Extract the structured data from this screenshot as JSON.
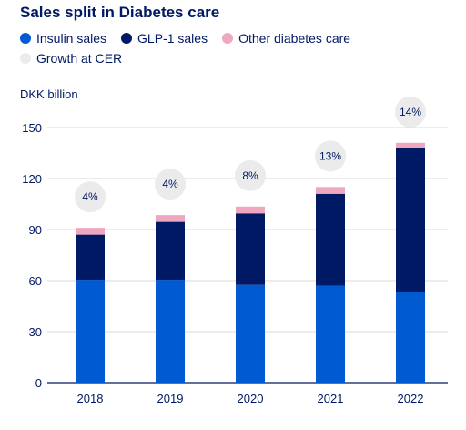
{
  "chart_data": {
    "type": "bar",
    "stacked": true,
    "title": "Sales split in Diabetes care",
    "ylabel": "DKK billion",
    "xlabel": "",
    "categories": [
      "2018",
      "2019",
      "2020",
      "2021",
      "2022"
    ],
    "yticks": [
      0,
      30,
      60,
      90,
      120,
      150
    ],
    "ylim": [
      0,
      150
    ],
    "grid": true,
    "legend_placement": "top-left",
    "series": [
      {
        "name": "Insulin sales",
        "color": "#005ad2",
        "values": [
          60.5,
          60.5,
          57.5,
          57,
          53.5
        ]
      },
      {
        "name": "GLP-1 sales",
        "color": "#001965",
        "values": [
          26.5,
          34,
          42,
          54,
          84.5
        ]
      },
      {
        "name": "Other diabetes care",
        "color": "#eea7bf",
        "values": [
          4,
          4,
          4,
          4,
          3
        ]
      }
    ],
    "growth": {
      "name": "Growth at CER",
      "color": "#ebebeb",
      "labels": [
        "4%",
        "4%",
        "8%",
        "13%",
        "14%"
      ]
    }
  }
}
